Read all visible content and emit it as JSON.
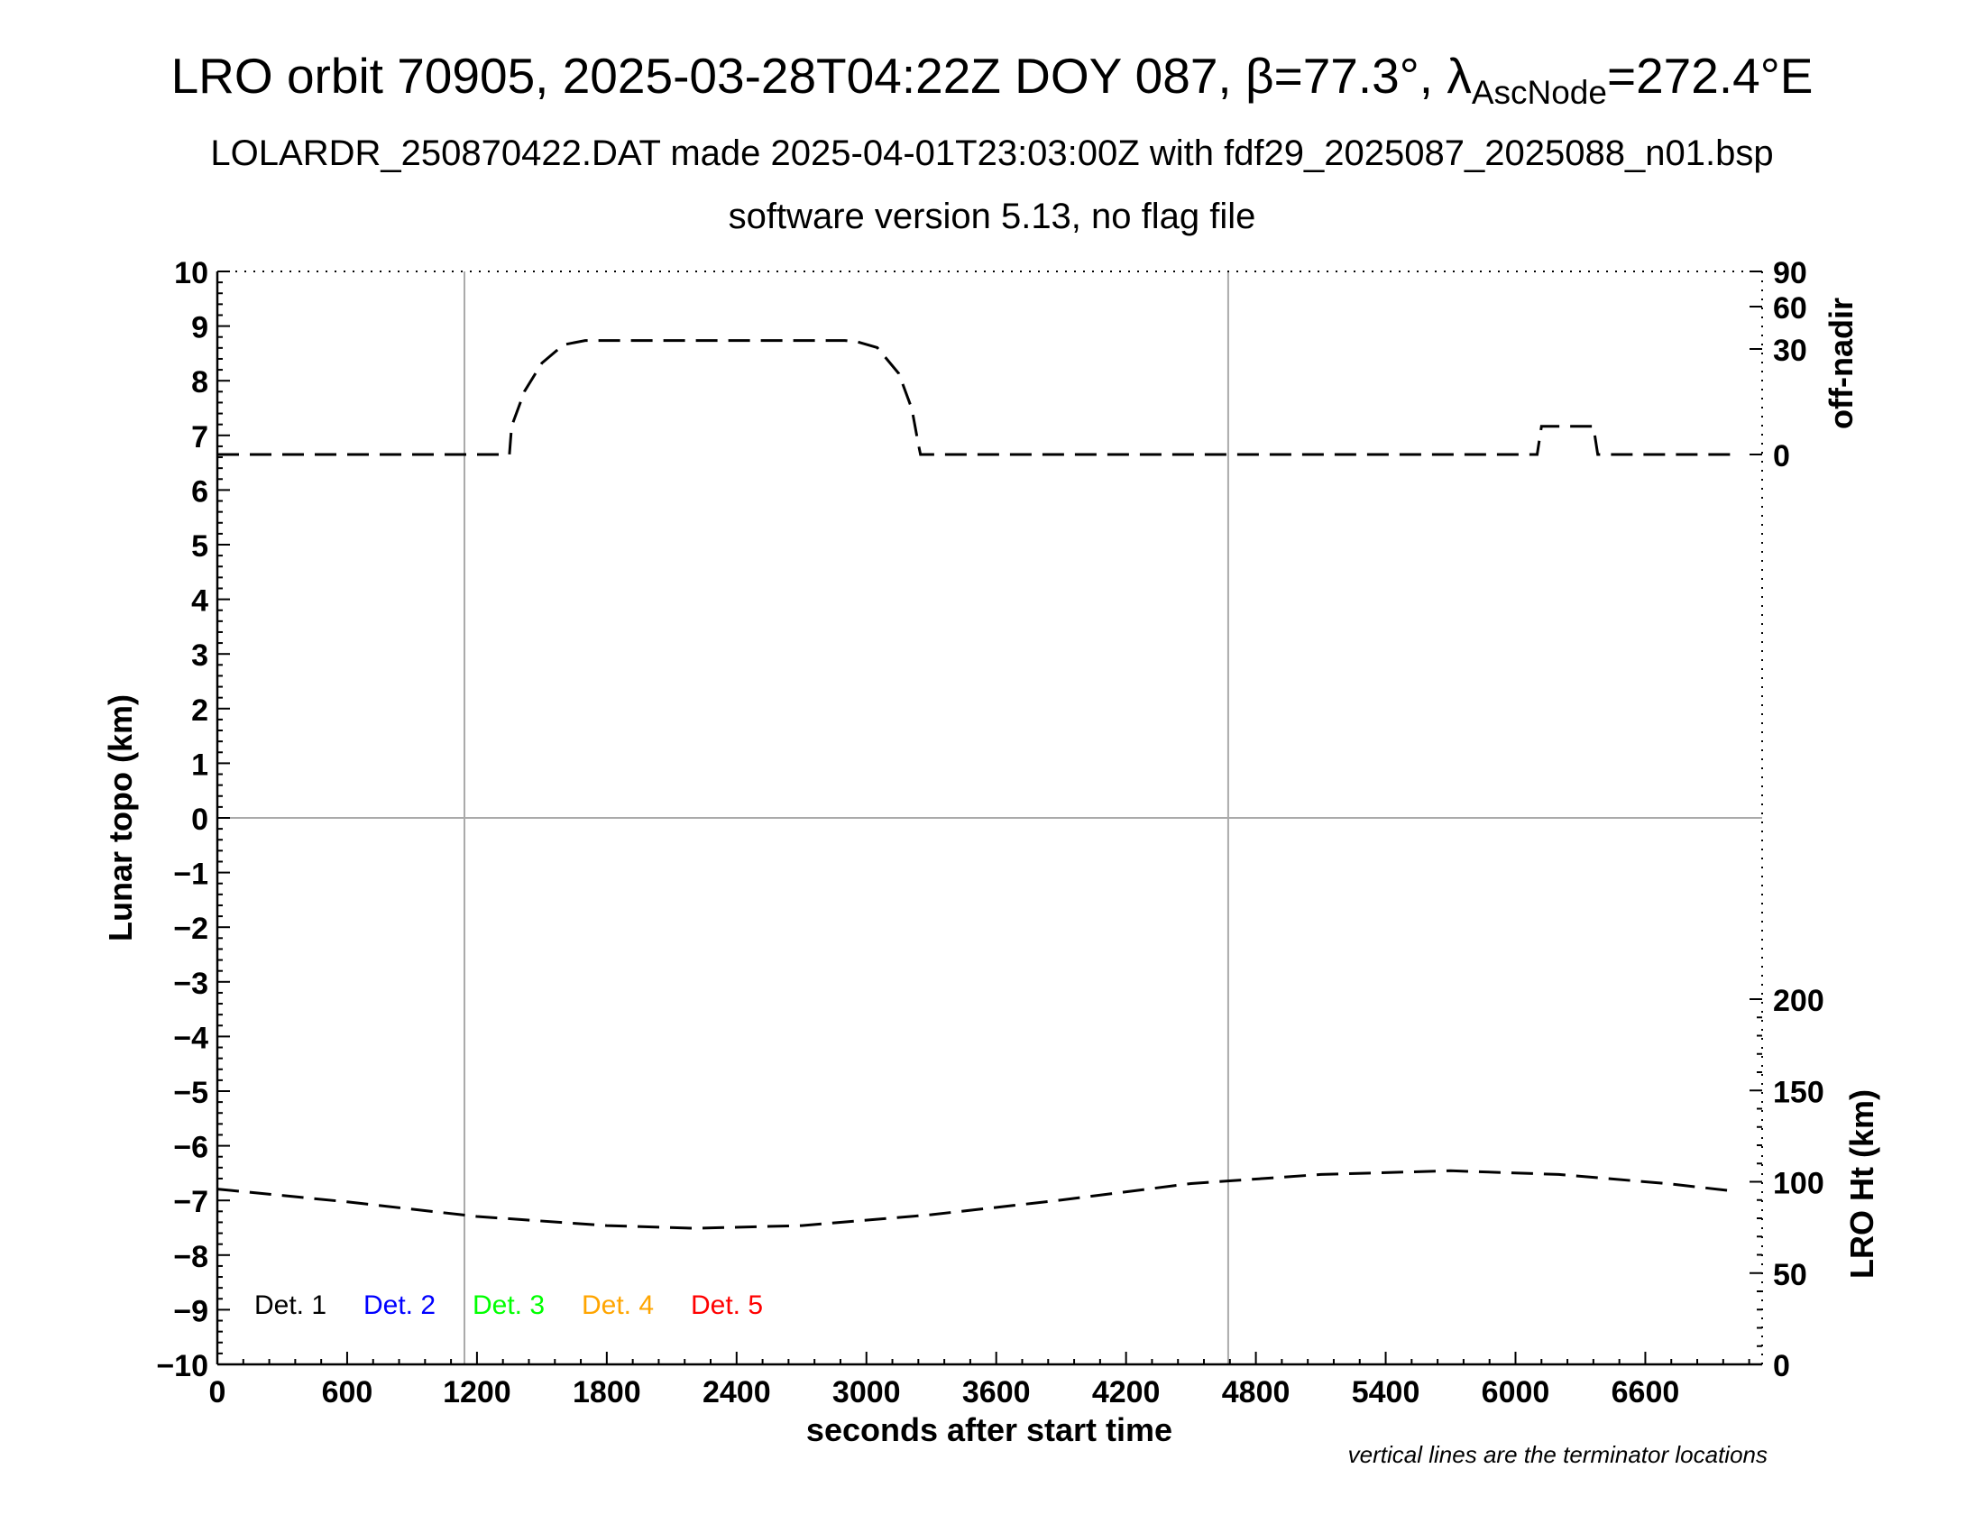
{
  "title": {
    "part1": "LRO orbit 70905, 2025-03-28T04:22Z DOY 087, β=77.3°, λ",
    "part_sub": "AscNode",
    "part2": "=272.4°E",
    "line2": "LOLARDR_250870422.DAT made 2025-04-01T23:03:00Z with fdf29_2025087_2025088_n01.bsp",
    "line3": "software version 5.13, no flag file"
  },
  "chart_data": {
    "type": "line",
    "xlabel": "seconds after start time",
    "ylabel": "Lunar topo (km)",
    "xlim": [
      0,
      7140
    ],
    "ylim": [
      -10,
      10
    ],
    "x_ticks": [
      0,
      600,
      1200,
      1800,
      2400,
      3000,
      3600,
      4200,
      4800,
      5400,
      6000,
      6600
    ],
    "y_ticks": [
      10,
      9,
      8,
      7,
      6,
      5,
      4,
      3,
      2,
      1,
      0,
      -1,
      -2,
      -3,
      -4,
      -5,
      -6,
      -7,
      -8,
      -9,
      -10
    ],
    "y_tick_labels": [
      "10",
      "9",
      "8",
      "7",
      "6",
      "5",
      "4",
      "3",
      "2",
      "1",
      "0",
      "−1",
      "−2",
      "−3",
      "−4",
      "−5",
      "−6",
      "−7",
      "−8",
      "−9",
      "−10"
    ],
    "right_axis_top": {
      "label": "off-nadir",
      "ticks": [
        90,
        60,
        30,
        0
      ],
      "tick_labels": [
        "90",
        "60",
        "30",
        "0"
      ],
      "range": [
        0,
        90
      ]
    },
    "right_axis_bottom": {
      "label": "LRO Ht (km)",
      "ticks": [
        200,
        150,
        100,
        50,
        0
      ],
      "tick_labels": [
        "200",
        "150",
        "100",
        "50",
        "0"
      ],
      "range": [
        0,
        200
      ]
    },
    "terminator_lines_x": [
      1140,
      4670
    ],
    "zero_line": true,
    "legend": {
      "placement": "bottom-left",
      "entries": [
        {
          "label": "Det. 1",
          "color": "#000000"
        },
        {
          "label": "Det. 2",
          "color": "#0000ff"
        },
        {
          "label": "Det. 3",
          "color": "#00ff00"
        },
        {
          "label": "Det. 4",
          "color": "#ffa500"
        },
        {
          "label": "Det. 5",
          "color": "#ff0000"
        }
      ]
    },
    "note": "vertical lines are the terminator locations",
    "series": [
      {
        "axis": "off-nadir",
        "style": "dashed",
        "color": "#000000",
        "points": [
          [
            0,
            0
          ],
          [
            1350,
            0
          ],
          [
            1360,
            8
          ],
          [
            1420,
            18
          ],
          [
            1500,
            26
          ],
          [
            1600,
            33
          ],
          [
            1700,
            36
          ],
          [
            1800,
            36
          ],
          [
            2400,
            36
          ],
          [
            2900,
            36
          ],
          [
            2960,
            35
          ],
          [
            3050,
            31
          ],
          [
            3150,
            23
          ],
          [
            3210,
            13
          ],
          [
            3240,
            3
          ],
          [
            3250,
            0
          ],
          [
            4800,
            0
          ],
          [
            6100,
            0
          ],
          [
            6120,
            8
          ],
          [
            6360,
            8
          ],
          [
            6380,
            0
          ],
          [
            7000,
            0
          ]
        ]
      },
      {
        "axis": "LRO Ht (km)",
        "style": "dashed",
        "color": "#000000",
        "points": [
          [
            0,
            96
          ],
          [
            600,
            89
          ],
          [
            1200,
            81
          ],
          [
            1800,
            76
          ],
          [
            2200,
            74.5
          ],
          [
            2700,
            76
          ],
          [
            3300,
            82
          ],
          [
            3900,
            90
          ],
          [
            4500,
            99
          ],
          [
            5100,
            104
          ],
          [
            5700,
            106
          ],
          [
            6200,
            104
          ],
          [
            6700,
            99
          ],
          [
            7000,
            95
          ]
        ]
      }
    ]
  }
}
